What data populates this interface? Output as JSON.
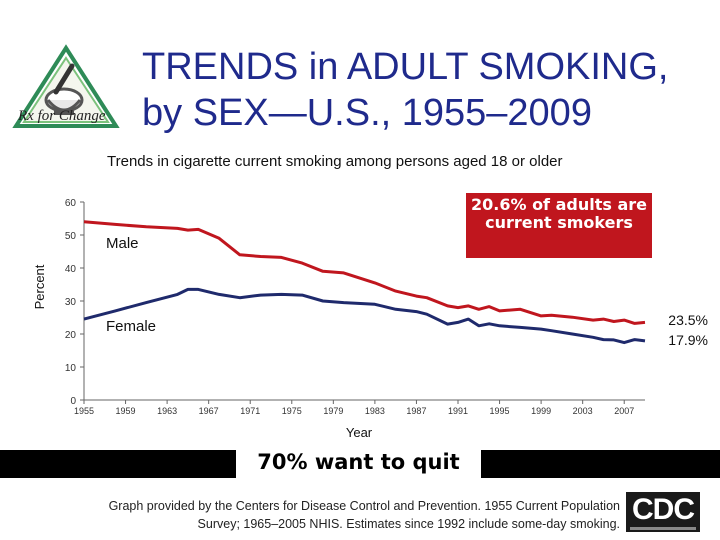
{
  "header": {
    "title_line1": "TRENDS in ADULT SMOKING,",
    "title_line2": "by SEX—U.S., 1955–2009",
    "logo_text": "Rx for Change"
  },
  "colors": {
    "title": "#1f2a8c",
    "male": "#c0161e",
    "female": "#1f2a6c",
    "callout": "#c0161e"
  },
  "chart_data": {
    "type": "line",
    "title": "Trends in cigarette current smoking among persons aged 18 or older",
    "xlabel": "Year",
    "ylabel": "Percent",
    "ylim": [
      0,
      60
    ],
    "yticks": [
      "0",
      "10",
      "20",
      "30",
      "40",
      "50",
      "60"
    ],
    "xlim": [
      1955,
      2009
    ],
    "xticks": [
      "1955",
      "1959",
      "1963",
      "1967",
      "1971",
      "1975",
      "1979",
      "1983",
      "1987",
      "1991",
      "1995",
      "1999",
      "2003",
      "2007"
    ],
    "grid": false,
    "series": [
      {
        "name": "Male",
        "x": [
          1955,
          1958,
          1961,
          1964,
          1965,
          1966,
          1968,
          1970,
          1972,
          1974,
          1976,
          1978,
          1980,
          1983,
          1985,
          1987,
          1988,
          1990,
          1991,
          1992,
          1993,
          1994,
          1995,
          1997,
          1999,
          2000,
          2002,
          2004,
          2005,
          2006,
          2007,
          2008,
          2009
        ],
        "values": [
          54,
          53.2,
          52.5,
          52,
          51.5,
          51.7,
          49,
          44,
          43.5,
          43.2,
          41.5,
          39,
          38.5,
          35.5,
          33,
          31.5,
          31,
          28.5,
          28,
          28.5,
          27.5,
          28.3,
          27,
          27.5,
          25.5,
          25.7,
          25.1,
          24.2,
          24.5,
          23.8,
          24.2,
          23.2,
          23.5
        ]
      },
      {
        "name": "Female",
        "x": [
          1955,
          1958,
          1961,
          1964,
          1965,
          1966,
          1968,
          1970,
          1972,
          1974,
          1976,
          1978,
          1980,
          1983,
          1985,
          1987,
          1988,
          1990,
          1991,
          1992,
          1993,
          1994,
          1995,
          1997,
          1999,
          2000,
          2002,
          2004,
          2005,
          2006,
          2007,
          2008,
          2009
        ],
        "values": [
          24.5,
          27,
          29.5,
          32,
          33.5,
          33.5,
          32,
          31,
          31.8,
          32,
          31.8,
          30,
          29.5,
          29,
          27.5,
          26.8,
          26,
          23,
          23.5,
          24.5,
          22.5,
          23.1,
          22.5,
          22,
          21.5,
          21,
          20,
          19,
          18.3,
          18.2,
          17.4,
          18.3,
          17.9
        ]
      }
    ],
    "series_labels": [
      "Male",
      "Female"
    ],
    "end_labels": [
      "23.5%",
      "17.9%"
    ],
    "callout": "20.6% of adults are current smokers"
  },
  "banner": {
    "text": "70% want to quit"
  },
  "footer": {
    "credit_line1": "Graph provided by the Centers for Disease Control and Prevention. 1955 Current Population",
    "credit_line2": "Survey; 1965–2005 NHIS. Estimates since 1992 include some-day smoking.",
    "cdc_logo": "CDC"
  }
}
